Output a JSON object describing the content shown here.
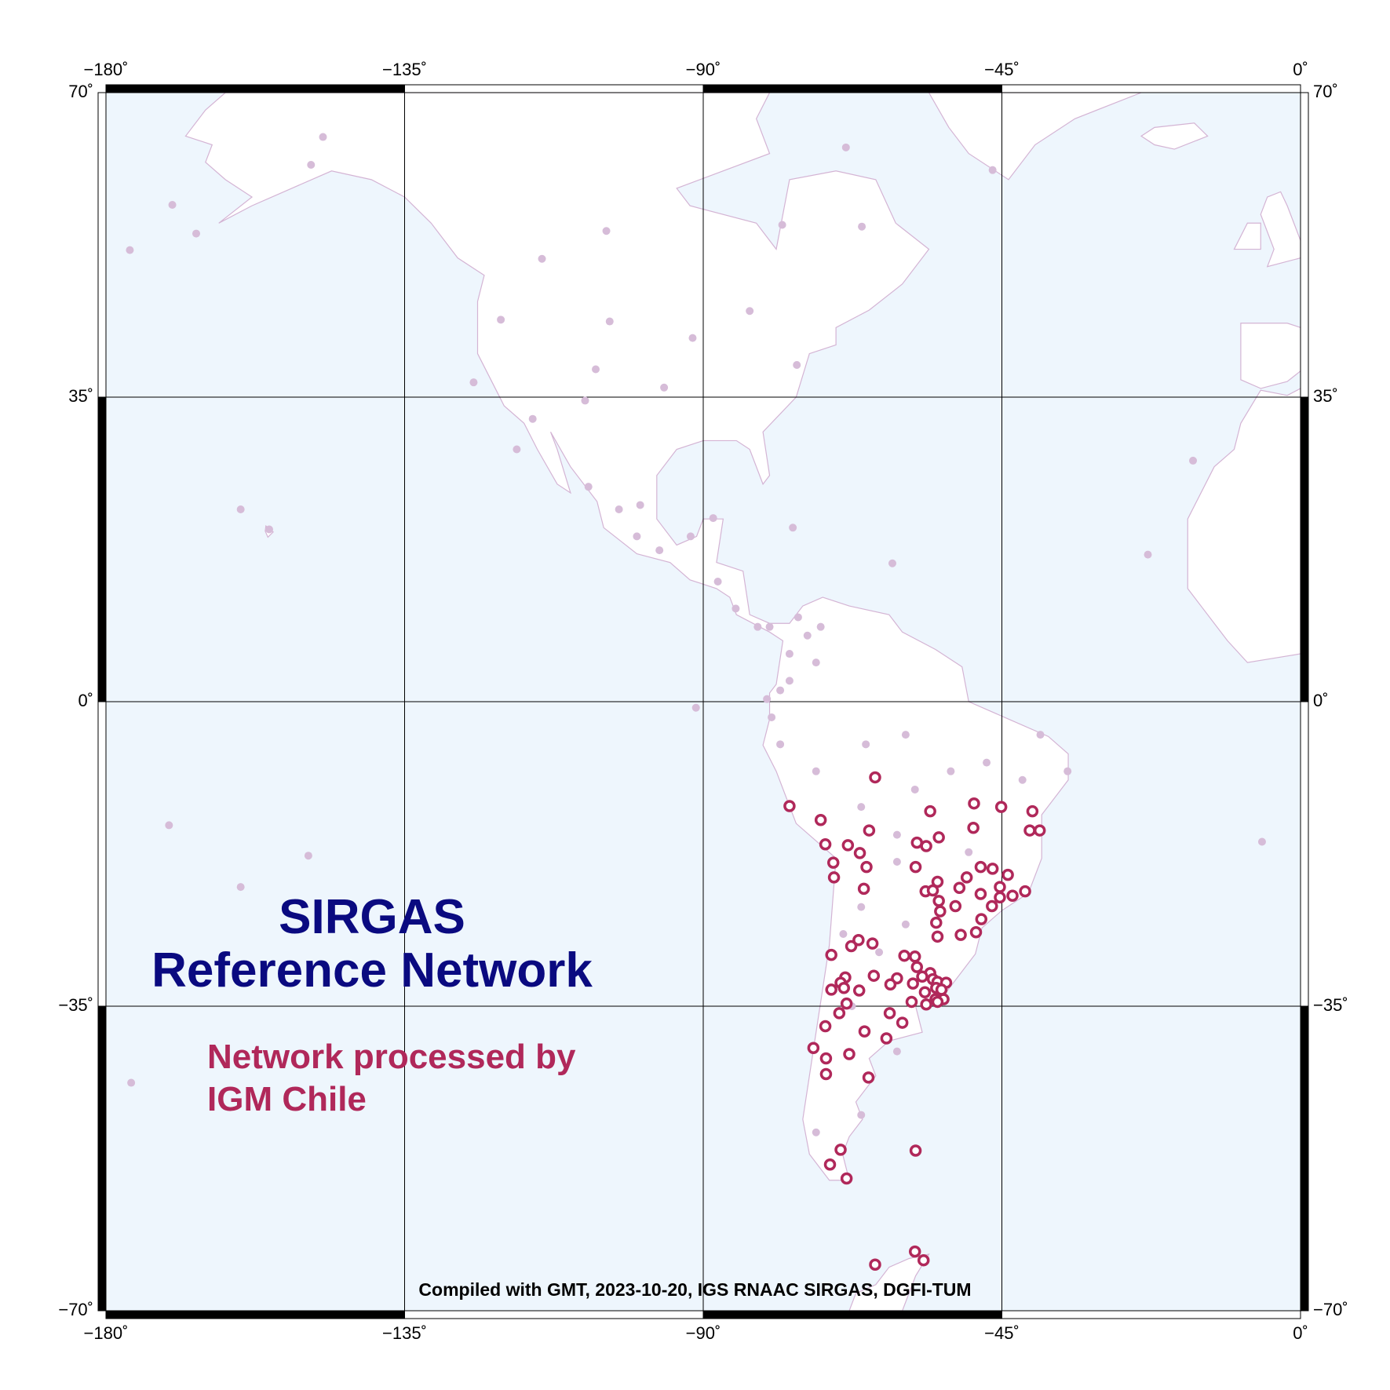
{
  "chart_data": {
    "type": "map",
    "title": "SIRGAS",
    "subtitle": "Reference Network",
    "note": "Compiled with GMT, 2023-10-20, IGS RNAAC SIRGAS, DGFI-TUM",
    "xlim": [
      -180,
      0
    ],
    "ylim": [
      -70,
      70
    ],
    "xticks": [
      {
        "value": -180,
        "label": "−180˚"
      },
      {
        "value": -135,
        "label": "−135˚"
      },
      {
        "value": -90,
        "label": "−90˚"
      },
      {
        "value": -45,
        "label": "−45˚"
      },
      {
        "value": 0,
        "label": "0˚"
      }
    ],
    "yticks": [
      {
        "value": 70,
        "label": "70˚"
      },
      {
        "value": 35,
        "label": "35˚"
      },
      {
        "value": 0,
        "label": "0˚"
      },
      {
        "value": -35,
        "label": "−35˚"
      },
      {
        "value": -70,
        "label": "−70˚"
      }
    ],
    "grid": true,
    "series": [
      {
        "color": "#d6bcd8",
        "x": [
          -147.3,
          -149.1,
          -170.0,
          -166.4,
          -176.4,
          -114.3,
          -104.6,
          -120.5,
          -104.1,
          -91.6,
          -106.2,
          -95.9,
          -124.6,
          -115.7,
          -107.8,
          -118.1,
          -107.3,
          -99.5,
          -102.7,
          -100.0,
          -96.6,
          -91.9,
          -88.5,
          -159.7,
          -155.4,
          -76.5,
          -61.5,
          -46.4,
          -68.5,
          -78.1,
          -66.1,
          -83.0,
          -75.9,
          -16.2,
          -23.0,
          -5.8,
          -170.5,
          -149.5,
          -159.7,
          -176.2,
          -91.1,
          -87.8,
          -85.1,
          -80.0,
          -75.7,
          -74.3,
          -77.0,
          -78.4,
          -79.7,
          -78.4,
          -73.0,
          -65.5,
          -59.5,
          -52.7,
          -47.3,
          -41.9,
          -35.1,
          -39.2,
          -58.1,
          -66.2,
          -60.8,
          -50.0,
          -60.8,
          -66.2,
          -59.5,
          -68.9,
          -63.5,
          -67.6,
          -60.8,
          -66.2,
          -73.0,
          -81.8,
          -72.3,
          -77.0,
          -80.4,
          -73.0
        ],
        "y": [
          64.9,
          61.7,
          57.1,
          53.8,
          51.9,
          50.9,
          54.1,
          43.9,
          43.7,
          41.8,
          38.2,
          36.1,
          36.7,
          32.5,
          34.6,
          29.0,
          24.7,
          22.6,
          22.1,
          19.0,
          17.4,
          19.0,
          21.1,
          22.1,
          19.8,
          20.0,
          15.9,
          61.1,
          63.7,
          54.8,
          54.6,
          44.9,
          38.7,
          27.7,
          16.9,
          -16.1,
          -14.2,
          -17.7,
          -21.3,
          -43.8,
          -0.7,
          13.8,
          10.7,
          8.6,
          9.7,
          7.6,
          5.5,
          1.3,
          -1.8,
          -4.9,
          -8.0,
          -4.9,
          -3.8,
          -8.0,
          -7.0,
          -9.0,
          -8.0,
          -3.8,
          -10.1,
          -12.1,
          -15.3,
          -17.3,
          -18.4,
          -23.6,
          -25.6,
          -26.7,
          -28.8,
          -35.0,
          -40.2,
          -47.5,
          -49.5,
          8.6,
          8.6,
          2.4,
          0.3,
          4.5
        ]
      },
      {
        "name": "Network processed by IGM Chile",
        "color": "#b0285a",
        "x": [
          -64.1,
          -77.0,
          -72.3,
          -65.0,
          -55.8,
          -49.2,
          -45.1,
          -40.4,
          -49.3,
          -40.8,
          -39.3,
          -71.6,
          -68.2,
          -66.4,
          -57.8,
          -56.4,
          -54.5,
          -70.4,
          -65.4,
          -58.0,
          -48.2,
          -46.4,
          -70.3,
          -50.3,
          -44.1,
          -54.7,
          -51.4,
          -65.8,
          -56.5,
          -55.4,
          -45.3,
          -48.2,
          -43.4,
          -41.5,
          -45.3,
          -54.5,
          -54.3,
          -52.0,
          -46.5,
          -48.1,
          -54.9,
          -48.9,
          -51.2,
          -54.7,
          -66.6,
          -64.5,
          -67.7,
          -70.7,
          -59.7,
          -58.1,
          -57.8,
          -55.8,
          -55.4,
          -57.0,
          -60.8,
          -64.3,
          -68.6,
          -69.3,
          -61.8,
          -58.4,
          -54.7,
          -53.4,
          -70.7,
          -68.8,
          -66.5,
          -56.6,
          -54.9,
          -54.1,
          -55.0,
          -53.8,
          -68.4,
          -58.6,
          -56.4,
          -54.7,
          -69.5,
          -61.9,
          -60.0,
          -71.6,
          -65.7,
          -62.4,
          -73.4,
          -71.5,
          -68.0,
          -71.5,
          -65.1,
          -69.3,
          -58.0,
          -70.9,
          -68.4,
          -64.1,
          -58.1,
          -56.8
        ],
        "y": [
          -8.7,
          -12.0,
          -13.6,
          -14.8,
          -12.6,
          -11.7,
          -12.1,
          -12.6,
          -14.5,
          -14.8,
          -14.8,
          -16.4,
          -16.5,
          -17.4,
          -16.2,
          -16.6,
          -15.6,
          -18.5,
          -19.0,
          -19.0,
          -19.0,
          -19.2,
          -20.2,
          -20.2,
          -19.9,
          -20.7,
          -21.4,
          -21.5,
          -21.8,
          -21.7,
          -21.3,
          -22.1,
          -22.3,
          -21.8,
          -22.5,
          -22.9,
          -24.1,
          -23.5,
          -23.5,
          -25.0,
          -25.4,
          -26.5,
          -26.8,
          -27.0,
          -27.4,
          -27.8,
          -28.1,
          -29.1,
          -29.2,
          -29.3,
          -30.5,
          -31.2,
          -31.9,
          -31.6,
          -31.8,
          -31.5,
          -31.7,
          -32.3,
          -32.5,
          -32.4,
          -32.2,
          -32.3,
          -33.1,
          -32.9,
          -33.2,
          -33.4,
          -32.9,
          -33.1,
          -34.2,
          -34.2,
          -34.7,
          -34.5,
          -34.8,
          -34.5,
          -35.8,
          -35.8,
          -36.9,
          -37.3,
          -37.9,
          -38.7,
          -39.8,
          -41.0,
          -40.5,
          -42.8,
          -43.2,
          -51.5,
          -51.6,
          -53.2,
          -54.8,
          -64.7,
          -63.2,
          -64.2
        ]
      }
    ]
  }
}
